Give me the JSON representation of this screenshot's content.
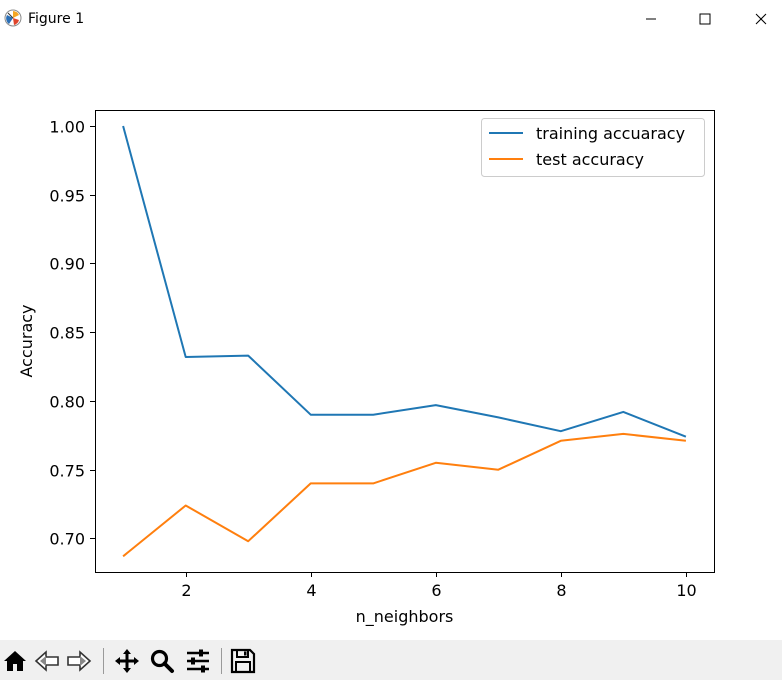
{
  "window": {
    "title": "Figure 1"
  },
  "toolbar": {
    "buttons": [
      {
        "name": "home-icon"
      },
      {
        "name": "back-icon"
      },
      {
        "name": "forward-icon"
      },
      {
        "name": "pan-icon"
      },
      {
        "name": "zoom-icon"
      },
      {
        "name": "configure-subplots-icon"
      },
      {
        "name": "save-icon"
      }
    ]
  },
  "chart_data": {
    "type": "line",
    "title": "",
    "xlabel": "n_neighbors",
    "ylabel": "Accuracy",
    "xlim": [
      0.55,
      10.45
    ],
    "ylim": [
      0.6756,
      1.0116
    ],
    "x_ticks": [
      2,
      4,
      6,
      8,
      10
    ],
    "x_tick_labels": [
      "2",
      "4",
      "6",
      "8",
      "10"
    ],
    "y_ticks": [
      0.7,
      0.75,
      0.8,
      0.85,
      0.9,
      0.95,
      1.0
    ],
    "y_tick_labels": [
      "0.70",
      "0.75",
      "0.80",
      "0.85",
      "0.90",
      "0.95",
      "1.00"
    ],
    "grid": false,
    "legend_position": "top-right",
    "x": [
      1,
      2,
      3,
      4,
      5,
      6,
      7,
      8,
      9,
      10
    ],
    "series": [
      {
        "name": "training accuaracy",
        "color": "#1f77b4",
        "values": [
          1.0,
          0.832,
          0.833,
          0.79,
          0.79,
          0.797,
          0.788,
          0.778,
          0.792,
          0.774
        ]
      },
      {
        "name": "test accuracy",
        "color": "#ff7f0e",
        "values": [
          0.687,
          0.724,
          0.698,
          0.74,
          0.74,
          0.755,
          0.75,
          0.771,
          0.776,
          0.771
        ]
      }
    ]
  }
}
